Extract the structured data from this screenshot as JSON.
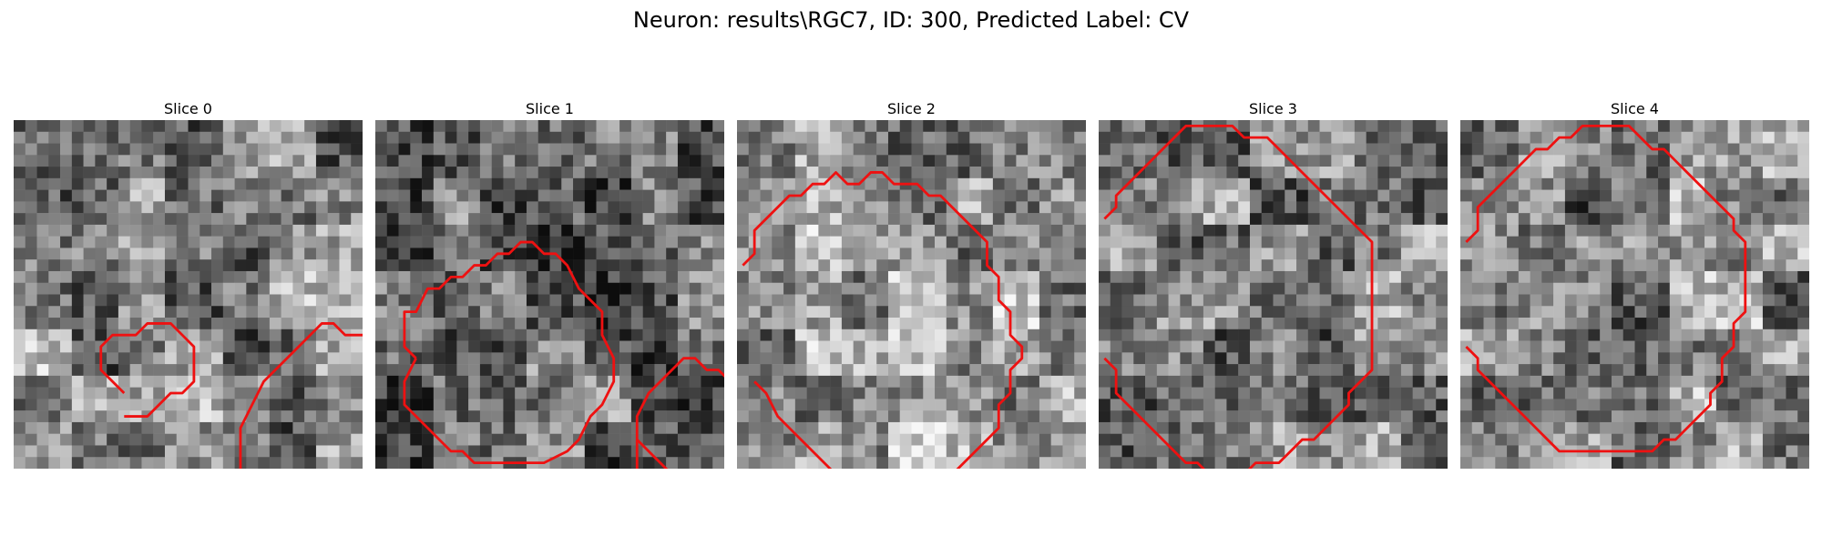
{
  "figure": {
    "title": "Neuron: results\\RGC7, ID: 300, Predicted Label: CV"
  },
  "colors": {
    "contour": "#ee1111",
    "background": "#ffffff"
  },
  "panels": [
    {
      "title": "Slice 0",
      "seed": 11,
      "mood": "medium",
      "contours": [
        [
          [
            9,
            23
          ],
          [
            7,
            21
          ],
          [
            7,
            19
          ],
          [
            8,
            18
          ],
          [
            10,
            18
          ],
          [
            11,
            17
          ],
          [
            13,
            17
          ],
          [
            14,
            18
          ],
          [
            15,
            19
          ],
          [
            15,
            22
          ],
          [
            14,
            23
          ],
          [
            13,
            23
          ],
          [
            11,
            25
          ],
          [
            9,
            25
          ]
        ],
        [
          [
            22,
            36
          ],
          [
            20,
            34
          ],
          [
            19,
            32
          ],
          [
            19,
            26
          ],
          [
            21,
            22
          ],
          [
            23,
            20
          ],
          [
            24,
            19
          ],
          [
            25,
            18
          ],
          [
            26,
            17
          ],
          [
            27,
            17
          ],
          [
            28,
            18
          ],
          [
            30,
            18
          ],
          [
            31,
            19
          ],
          [
            32,
            20
          ]
        ],
        [
          [
            30,
            31
          ],
          [
            31,
            30
          ]
        ]
      ]
    },
    {
      "title": "Slice 1",
      "seed": 23,
      "mood": "dark",
      "contours": [
        [
          [
            3,
            20
          ],
          [
            2,
            19
          ],
          [
            2,
            16
          ],
          [
            3,
            16
          ],
          [
            4,
            14
          ],
          [
            5,
            14
          ],
          [
            6,
            13
          ],
          [
            7,
            13
          ],
          [
            8,
            12
          ],
          [
            9,
            12
          ],
          [
            10,
            11
          ],
          [
            11,
            11
          ],
          [
            12,
            10
          ],
          [
            13,
            10
          ],
          [
            14,
            11
          ],
          [
            15,
            11
          ],
          [
            16,
            12
          ],
          [
            17,
            14
          ],
          [
            18,
            15
          ],
          [
            19,
            16
          ],
          [
            19,
            18
          ],
          [
            20,
            20
          ],
          [
            20,
            22
          ],
          [
            19,
            24
          ],
          [
            18,
            25
          ],
          [
            17,
            27
          ],
          [
            16,
            28
          ],
          [
            14,
            29
          ],
          [
            12,
            29
          ],
          [
            11,
            29
          ],
          [
            9,
            29
          ],
          [
            8,
            29
          ],
          [
            7,
            28
          ],
          [
            6,
            28
          ],
          [
            5,
            27
          ],
          [
            4,
            26
          ],
          [
            3,
            25
          ],
          [
            2,
            24
          ],
          [
            2,
            22
          ],
          [
            3,
            20
          ]
        ],
        [
          [
            22,
            30
          ],
          [
            22,
            27
          ],
          [
            22,
            25
          ],
          [
            23,
            23
          ],
          [
            24,
            22
          ],
          [
            25,
            21
          ],
          [
            26,
            20
          ],
          [
            27,
            20
          ],
          [
            28,
            21
          ],
          [
            29,
            21
          ],
          [
            30,
            22
          ],
          [
            31,
            22
          ]
        ],
        [
          [
            25,
            30
          ],
          [
            22,
            27
          ]
        ]
      ]
    },
    {
      "title": "Slice 2",
      "seed": 37,
      "mood": "light",
      "contours": [
        [
          [
            0,
            12
          ],
          [
            1,
            11
          ],
          [
            1,
            9
          ],
          [
            2,
            8
          ],
          [
            3,
            7
          ],
          [
            4,
            6
          ],
          [
            5,
            6
          ],
          [
            6,
            5
          ],
          [
            7,
            5
          ],
          [
            8,
            4
          ],
          [
            9,
            5
          ],
          [
            10,
            5
          ],
          [
            11,
            4
          ],
          [
            12,
            4
          ],
          [
            13,
            5
          ],
          [
            14,
            5
          ],
          [
            15,
            5
          ],
          [
            16,
            6
          ],
          [
            17,
            6
          ],
          [
            18,
            7
          ],
          [
            19,
            8
          ],
          [
            20,
            9
          ],
          [
            21,
            10
          ],
          [
            21,
            12
          ],
          [
            22,
            13
          ],
          [
            22,
            15
          ],
          [
            23,
            16
          ],
          [
            23,
            18
          ],
          [
            24,
            19
          ],
          [
            24,
            20
          ],
          [
            23,
            21
          ],
          [
            23,
            23
          ],
          [
            22,
            24
          ],
          [
            22,
            26
          ],
          [
            21,
            27
          ],
          [
            20,
            28
          ],
          [
            19,
            29
          ],
          [
            18,
            30
          ],
          [
            17,
            31
          ],
          [
            16,
            32
          ],
          [
            15,
            33
          ]
        ],
        [
          [
            1,
            22
          ],
          [
            2,
            23
          ],
          [
            3,
            25
          ],
          [
            4,
            26
          ],
          [
            5,
            27
          ],
          [
            6,
            28
          ],
          [
            7,
            29
          ],
          [
            8,
            30
          ],
          [
            9,
            31
          ],
          [
            10,
            32
          ],
          [
            11,
            33
          ]
        ]
      ]
    },
    {
      "title": "Slice 3",
      "seed": 53,
      "mood": "medium",
      "contours": [
        [
          [
            0,
            8
          ],
          [
            1,
            7
          ],
          [
            1,
            6
          ],
          [
            2,
            5
          ],
          [
            3,
            4
          ],
          [
            4,
            3
          ],
          [
            5,
            2
          ],
          [
            6,
            1
          ],
          [
            7,
            0
          ],
          [
            8,
            0
          ],
          [
            10,
            0
          ],
          [
            11,
            0
          ],
          [
            12,
            1
          ],
          [
            13,
            1
          ],
          [
            14,
            1
          ],
          [
            15,
            2
          ],
          [
            16,
            3
          ],
          [
            17,
            4
          ],
          [
            18,
            5
          ],
          [
            19,
            6
          ],
          [
            20,
            7
          ],
          [
            21,
            8
          ],
          [
            22,
            9
          ],
          [
            23,
            10
          ],
          [
            23,
            12
          ],
          [
            23,
            13
          ],
          [
            23,
            15
          ],
          [
            23,
            17
          ],
          [
            23,
            19
          ],
          [
            23,
            21
          ],
          [
            22,
            22
          ],
          [
            21,
            23
          ],
          [
            21,
            24
          ],
          [
            20,
            25
          ],
          [
            19,
            26
          ],
          [
            18,
            27
          ],
          [
            17,
            27
          ],
          [
            16,
            28
          ],
          [
            15,
            29
          ],
          [
            14,
            29
          ],
          [
            13,
            29
          ],
          [
            12,
            30
          ],
          [
            11,
            30
          ],
          [
            10,
            30
          ],
          [
            9,
            30
          ],
          [
            8,
            29
          ],
          [
            7,
            29
          ],
          [
            6,
            28
          ],
          [
            5,
            27
          ],
          [
            4,
            26
          ],
          [
            3,
            25
          ],
          [
            2,
            24
          ],
          [
            1,
            23
          ],
          [
            1,
            21
          ],
          [
            0,
            20
          ]
        ]
      ]
    },
    {
      "title": "Slice 4",
      "seed": 71,
      "mood": "medium",
      "contours": [
        [
          [
            0,
            10
          ],
          [
            1,
            9
          ],
          [
            1,
            7
          ],
          [
            2,
            6
          ],
          [
            3,
            5
          ],
          [
            4,
            4
          ],
          [
            5,
            3
          ],
          [
            6,
            2
          ],
          [
            7,
            2
          ],
          [
            8,
            1
          ],
          [
            9,
            1
          ],
          [
            10,
            0
          ],
          [
            11,
            0
          ],
          [
            13,
            0
          ],
          [
            14,
            0
          ],
          [
            15,
            1
          ],
          [
            16,
            2
          ],
          [
            17,
            2
          ],
          [
            18,
            3
          ],
          [
            19,
            4
          ],
          [
            20,
            5
          ],
          [
            21,
            6
          ],
          [
            22,
            7
          ],
          [
            23,
            8
          ],
          [
            23,
            9
          ],
          [
            24,
            10
          ],
          [
            24,
            12
          ],
          [
            24,
            14
          ],
          [
            24,
            16
          ],
          [
            23,
            17
          ],
          [
            23,
            19
          ],
          [
            22,
            20
          ],
          [
            22,
            22
          ],
          [
            21,
            23
          ],
          [
            21,
            24
          ],
          [
            20,
            25
          ],
          [
            19,
            26
          ],
          [
            18,
            27
          ],
          [
            17,
            27
          ],
          [
            16,
            28
          ],
          [
            15,
            28
          ],
          [
            14,
            28
          ],
          [
            13,
            28
          ],
          [
            12,
            28
          ],
          [
            11,
            28
          ],
          [
            10,
            28
          ],
          [
            9,
            28
          ],
          [
            8,
            28
          ],
          [
            7,
            27
          ],
          [
            6,
            26
          ],
          [
            5,
            25
          ],
          [
            4,
            24
          ],
          [
            3,
            23
          ],
          [
            2,
            22
          ],
          [
            1,
            21
          ],
          [
            1,
            20
          ],
          [
            0,
            19
          ]
        ]
      ]
    }
  ]
}
